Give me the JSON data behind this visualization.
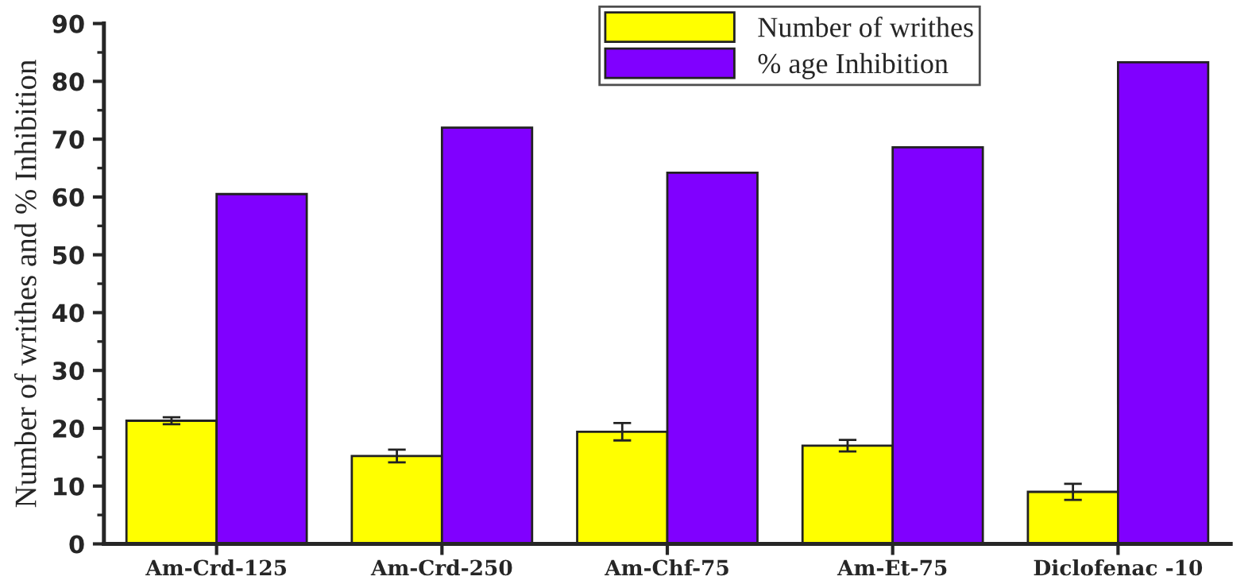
{
  "chart_data": {
    "type": "bar",
    "ylabel": "Number of writhes and % Inhibition",
    "categories": [
      "Am-Crd-125",
      "Am-Crd-250",
      "Am-Chf-75",
      "Am-Et-75",
      "Diclofenac -10"
    ],
    "series": [
      {
        "name": "Number of writhes",
        "color": "#ffff00",
        "values": [
          21.3,
          15.2,
          19.4,
          17.0,
          9.0
        ],
        "errors": [
          0.6,
          1.1,
          1.5,
          1.0,
          1.4
        ]
      },
      {
        "name": "% age Inhibition",
        "color": "#8000ff",
        "values": [
          60.5,
          72.0,
          64.2,
          68.6,
          83.3
        ]
      }
    ],
    "ylim": [
      0,
      90
    ],
    "yticks": [
      0,
      10,
      20,
      30,
      40,
      50,
      60,
      70,
      80,
      90
    ],
    "grid": false,
    "legend": "top right"
  }
}
